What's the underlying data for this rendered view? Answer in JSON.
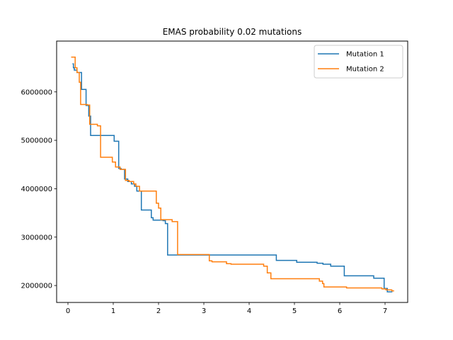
{
  "chart_data": {
    "type": "line",
    "title": "EMAS probability 0.02 mutations",
    "xlabel": "",
    "ylabel": "",
    "xlim": [
      -0.25,
      7.5
    ],
    "ylim": [
      1650000,
      7050000
    ],
    "x_ticks": [
      0,
      1,
      2,
      3,
      4,
      5,
      6,
      7
    ],
    "x_tick_labels": [
      "0",
      "1",
      "2",
      "3",
      "4",
      "5",
      "6",
      "7"
    ],
    "y_ticks": [
      2000000,
      3000000,
      4000000,
      5000000,
      6000000
    ],
    "y_tick_labels": [
      "2000000",
      "3000000",
      "4000000",
      "5000000",
      "6000000"
    ],
    "grid": false,
    "legend": "top-right",
    "step": true,
    "series": [
      {
        "name": "Mutation 1",
        "color": "#1f77b4",
        "x": [
          0.1,
          0.12,
          0.14,
          0.2,
          0.3,
          0.4,
          0.46,
          0.5,
          1.02,
          1.12,
          1.17,
          1.25,
          1.32,
          1.4,
          1.47,
          1.52,
          1.62,
          1.84,
          1.88,
          2.1,
          2.15,
          2.2,
          4.6,
          5.05,
          5.5,
          5.63,
          5.8,
          6.1,
          6.75,
          6.98,
          7.05,
          7.15
        ],
        "y": [
          6580000,
          6500000,
          6450000,
          6400000,
          6050000,
          5720000,
          5500000,
          5100000,
          4980000,
          4420000,
          4400000,
          4200000,
          4150000,
          4100000,
          4050000,
          3950000,
          3560000,
          3400000,
          3350000,
          3340000,
          3280000,
          2630000,
          2520000,
          2480000,
          2460000,
          2440000,
          2400000,
          2200000,
          2150000,
          1940000,
          1870000,
          1880000
        ]
      },
      {
        "name": "Mutation 2",
        "color": "#ff7f0e",
        "x": [
          0.07,
          0.16,
          0.2,
          0.25,
          0.28,
          0.42,
          0.48,
          0.65,
          0.72,
          0.98,
          1.05,
          1.15,
          1.27,
          1.35,
          1.45,
          1.5,
          1.58,
          1.95,
          2.0,
          2.05,
          2.3,
          2.42,
          3.12,
          3.18,
          3.5,
          3.6,
          4.32,
          4.4,
          4.48,
          5.55,
          5.62,
          5.65,
          6.15,
          6.93,
          7.02,
          7.15,
          7.2
        ],
        "y": [
          6720000,
          6500000,
          6400000,
          6200000,
          5740000,
          5730000,
          5330000,
          5300000,
          4650000,
          4550000,
          4450000,
          4400000,
          4170000,
          4150000,
          4100000,
          4050000,
          3950000,
          3700000,
          3600000,
          3360000,
          3320000,
          2640000,
          2510000,
          2490000,
          2450000,
          2440000,
          2400000,
          2260000,
          2140000,
          2090000,
          2040000,
          1970000,
          1950000,
          1930000,
          1910000,
          1890000,
          1890000
        ]
      }
    ]
  }
}
